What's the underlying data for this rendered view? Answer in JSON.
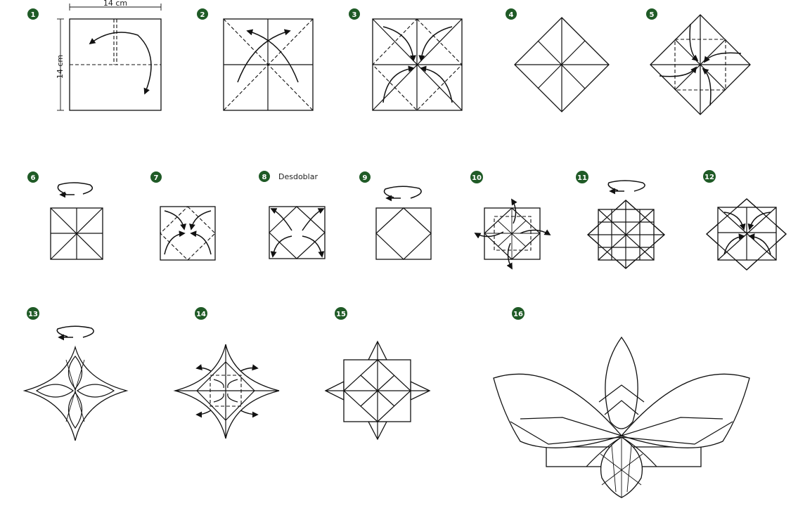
{
  "steps": [
    {
      "number": "1"
    },
    {
      "number": "2"
    },
    {
      "number": "3"
    },
    {
      "number": "4"
    },
    {
      "number": "5"
    },
    {
      "number": "6"
    },
    {
      "number": "7"
    },
    {
      "number": "8"
    },
    {
      "number": "9"
    },
    {
      "number": "10"
    },
    {
      "number": "11"
    },
    {
      "number": "12"
    },
    {
      "number": "13"
    },
    {
      "number": "14"
    },
    {
      "number": "15"
    },
    {
      "number": "16"
    }
  ],
  "dimensions": {
    "width": "14 cm",
    "height": "14 cm"
  },
  "step8_label": "Desdoblar",
  "colors": {
    "badge": "#1f5a26",
    "line": "#111111",
    "paper": "#ffffff"
  }
}
